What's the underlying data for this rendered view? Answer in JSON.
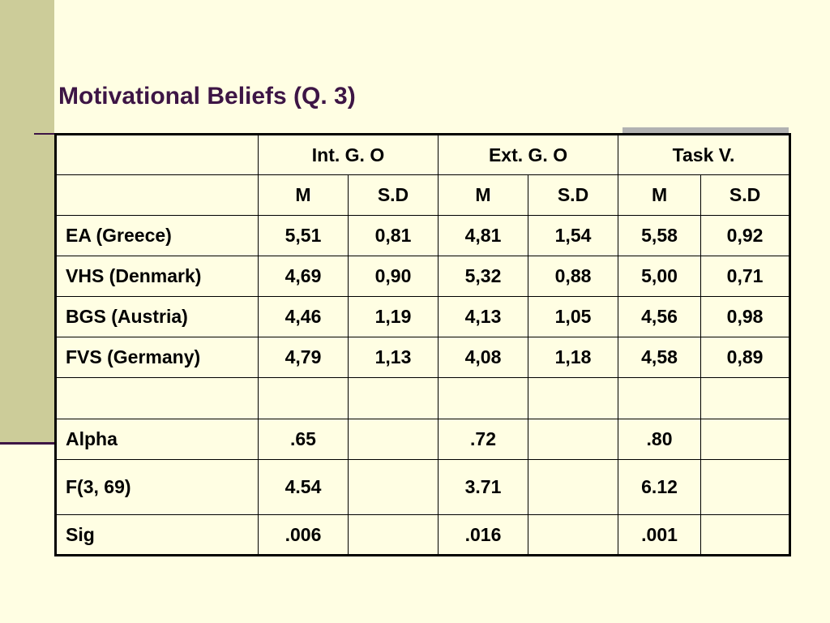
{
  "slide": {
    "title": "Motivational Beliefs (Q. 3)"
  },
  "colors": {
    "background": "#FFFEE3",
    "sidebar": "#CCCC99",
    "title": "#3D1545",
    "accent_rule": "#3D1545",
    "gray_accent": "#B2B2B2"
  },
  "table": {
    "group_headers": [
      "Int. G. O",
      "Ext. G. O",
      "Task V."
    ],
    "sub_headers": [
      "M",
      "S.D",
      "M",
      "S.D",
      "M",
      "S.D"
    ],
    "rows": [
      {
        "label": "EA (Greece)",
        "values": [
          "5,51",
          "0,81",
          "4,81",
          "1,54",
          "5,58",
          "0,92"
        ]
      },
      {
        "label": "VHS (Denmark)",
        "values": [
          "4,69",
          "0,90",
          "5,32",
          "0,88",
          "5,00",
          "0,71"
        ]
      },
      {
        "label": "BGS (Austria)",
        "values": [
          "4,46",
          "1,19",
          "4,13",
          "1,05",
          "4,56",
          "0,98"
        ]
      },
      {
        "label": "FVS (Germany)",
        "values": [
          "4,79",
          "1,13",
          "4,08",
          "1,18",
          "4,58",
          "0,89"
        ]
      }
    ],
    "stats": [
      {
        "label": "Alpha",
        "values": [
          ".65",
          ".72",
          ".80"
        ]
      },
      {
        "label": "F(3, 69)",
        "values": [
          "4.54",
          "3.71",
          "6.12"
        ]
      },
      {
        "label": "Sig",
        "values": [
          ".006",
          ".016",
          ".001"
        ]
      }
    ]
  }
}
